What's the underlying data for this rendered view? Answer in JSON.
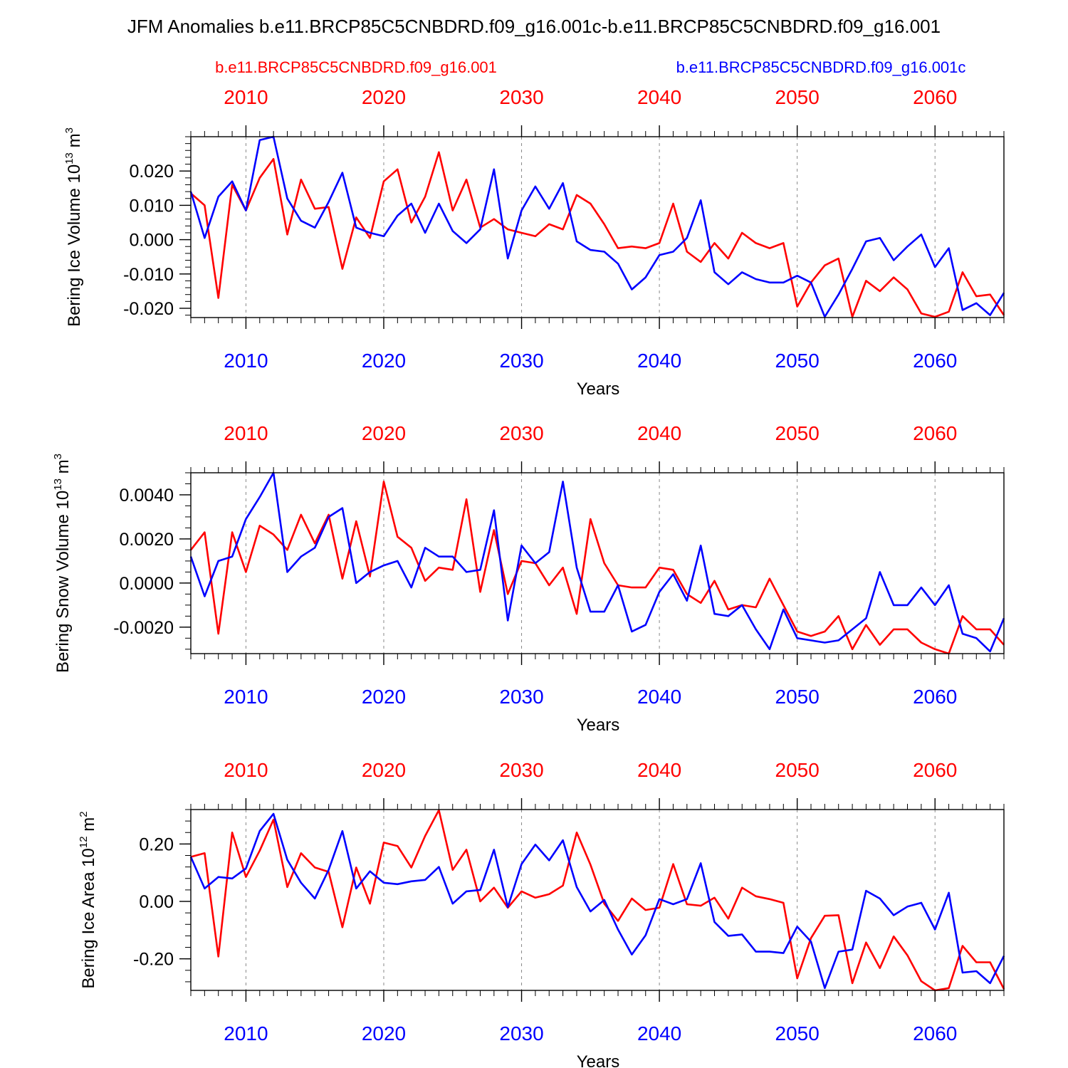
{
  "title": "JFM Anomalies b.e11.BRCP85C5CNBDRD.f09_g16.001c-b.e11.BRCP85C5CNBDRD.f09_g16.001",
  "legend": {
    "red_label": "b.e11.BRCP85C5CNBDRD.f09_g16.001",
    "blue_label": "b.e11.BRCP85C5CNBDRD.f09_g16.001c"
  },
  "colors": {
    "red": "#ff0000",
    "blue": "#0000ff",
    "axis": "#000000",
    "grid": "#888888"
  },
  "chart_data": [
    {
      "type": "line",
      "ylabel": "Bering Ice Volume 10",
      "ylabel_exp": "13",
      "ylabel_unit": " m",
      "ylabel_unit_exp": "3",
      "xlabel": "Years",
      "xlim": [
        2006,
        2065
      ],
      "ylim": [
        -0.0227,
        0.03
      ],
      "yticks": [
        -0.02,
        -0.01,
        0.0,
        0.01,
        0.02
      ],
      "ytick_labels": [
        "-0.020",
        "-0.010",
        "0.000",
        "0.010",
        "0.020"
      ],
      "yminor_step": 0.002,
      "xticks": [
        2010,
        2020,
        2030,
        2040,
        2050,
        2060
      ],
      "xtick_labels": [
        "2010",
        "2020",
        "2030",
        "2040",
        "2050",
        "2060"
      ],
      "x": [
        2006,
        2007,
        2008,
        2009,
        2010,
        2011,
        2012,
        2013,
        2014,
        2015,
        2016,
        2017,
        2018,
        2019,
        2020,
        2021,
        2022,
        2023,
        2024,
        2025,
        2026,
        2027,
        2028,
        2029,
        2030,
        2031,
        2032,
        2033,
        2034,
        2035,
        2036,
        2037,
        2038,
        2039,
        2040,
        2041,
        2042,
        2043,
        2044,
        2045,
        2046,
        2047,
        2048,
        2049,
        2050,
        2051,
        2052,
        2053,
        2054,
        2055,
        2056,
        2057,
        2058,
        2059,
        2060,
        2061,
        2062,
        2063,
        2064,
        2065
      ],
      "series": [
        {
          "name": "b.e11.BRCP85C5CNBDRD.f09_g16.001",
          "color": "red",
          "values": [
            0.0135,
            0.01,
            -0.017,
            0.016,
            0.0085,
            0.018,
            0.0235,
            0.0015,
            0.0175,
            0.009,
            0.0095,
            -0.0085,
            0.0065,
            0.0005,
            0.017,
            0.0205,
            0.005,
            0.0125,
            0.0255,
            0.0085,
            0.0175,
            0.0035,
            0.006,
            0.003,
            0.002,
            0.001,
            0.0045,
            0.003,
            0.013,
            0.0105,
            0.0045,
            -0.0025,
            -0.002,
            -0.0025,
            -0.001,
            0.0105,
            -0.0035,
            -0.0065,
            -0.001,
            -0.0055,
            0.002,
            -0.001,
            -0.0025,
            -0.001,
            -0.0195,
            -0.0125,
            -0.0075,
            -0.0055,
            -0.0225,
            -0.012,
            -0.015,
            -0.011,
            -0.0145,
            -0.0215,
            -0.0225,
            -0.021,
            -0.0095,
            -0.0165,
            -0.016,
            -0.022
          ]
        },
        {
          "name": "b.e11.BRCP85C5CNBDRD.f09_g16.001c",
          "color": "blue",
          "values": [
            0.014,
            0.0005,
            0.0125,
            0.017,
            0.0085,
            0.029,
            0.03,
            0.012,
            0.0055,
            0.0035,
            0.011,
            0.0195,
            0.0035,
            0.002,
            0.001,
            0.007,
            0.0105,
            0.002,
            0.0105,
            0.0025,
            -0.001,
            0.003,
            0.0205,
            -0.0055,
            0.0085,
            0.0155,
            0.009,
            0.0165,
            -0.0005,
            -0.003,
            -0.0035,
            -0.007,
            -0.0145,
            -0.011,
            -0.0045,
            -0.0035,
            0.0005,
            0.0115,
            -0.0095,
            -0.013,
            -0.0095,
            -0.0115,
            -0.0125,
            -0.0125,
            -0.0105,
            -0.0125,
            -0.0225,
            -0.016,
            -0.0085,
            -0.0005,
            0.0005,
            -0.006,
            -0.002,
            0.0015,
            -0.008,
            -0.0025,
            -0.0205,
            -0.0185,
            -0.022,
            -0.0155
          ]
        }
      ]
    },
    {
      "type": "line",
      "ylabel": "Bering Snow Volume 10",
      "ylabel_exp": "13",
      "ylabel_unit": " m",
      "ylabel_unit_exp": "3",
      "xlabel": "Years",
      "xlim": [
        2006,
        2065
      ],
      "ylim": [
        -0.0032,
        0.005
      ],
      "yticks": [
        -0.002,
        0.0,
        0.002,
        0.004
      ],
      "ytick_labels": [
        "-0.0020",
        "0.0000",
        "0.0020",
        "0.0040"
      ],
      "yminor_step": 0.0005,
      "xticks": [
        2010,
        2020,
        2030,
        2040,
        2050,
        2060
      ],
      "xtick_labels": [
        "2010",
        "2020",
        "2030",
        "2040",
        "2050",
        "2060"
      ],
      "x": [
        2006,
        2007,
        2008,
        2009,
        2010,
        2011,
        2012,
        2013,
        2014,
        2015,
        2016,
        2017,
        2018,
        2019,
        2020,
        2021,
        2022,
        2023,
        2024,
        2025,
        2026,
        2027,
        2028,
        2029,
        2030,
        2031,
        2032,
        2033,
        2034,
        2035,
        2036,
        2037,
        2038,
        2039,
        2040,
        2041,
        2042,
        2043,
        2044,
        2045,
        2046,
        2047,
        2048,
        2049,
        2050,
        2051,
        2052,
        2053,
        2054,
        2055,
        2056,
        2057,
        2058,
        2059,
        2060,
        2061,
        2062,
        2063,
        2064,
        2065
      ],
      "series": [
        {
          "name": "b.e11.BRCP85C5CNBDRD.f09_g16.001",
          "color": "red",
          "values": [
            0.0015,
            0.0023,
            -0.0023,
            0.0023,
            0.0005,
            0.0026,
            0.0022,
            0.0015,
            0.0031,
            0.0018,
            0.0031,
            0.0002,
            0.0028,
            0.0003,
            0.0046,
            0.0021,
            0.0016,
            0.0001,
            0.0007,
            0.0006,
            0.0038,
            -0.0004,
            0.0024,
            -0.0005,
            0.001,
            0.0009,
            -0.0001,
            0.0007,
            -0.0014,
            0.0029,
            0.0009,
            -0.0001,
            -0.0002,
            -0.0002,
            0.0007,
            0.0006,
            -0.0005,
            -0.0009,
            0.0001,
            -0.0012,
            -0.001,
            -0.0011,
            0.0002,
            -0.001,
            -0.0022,
            -0.0024,
            -0.0022,
            -0.0015,
            -0.003,
            -0.0019,
            -0.0028,
            -0.0021,
            -0.0021,
            -0.0027,
            -0.003,
            -0.0032,
            -0.0015,
            -0.0021,
            -0.0021,
            -0.0028
          ]
        },
        {
          "name": "b.e11.BRCP85C5CNBDRD.f09_g16.001c",
          "color": "blue",
          "values": [
            0.0012,
            -0.0006,
            0.001,
            0.0012,
            0.0029,
            0.0039,
            0.005,
            0.0005,
            0.0012,
            0.0016,
            0.003,
            0.0034,
            0.0,
            0.0005,
            0.0008,
            0.001,
            -0.0002,
            0.0016,
            0.0012,
            0.0012,
            0.0005,
            0.0006,
            0.0033,
            -0.0017,
            0.0017,
            0.0009,
            0.0014,
            0.0046,
            0.0007,
            -0.0013,
            -0.0013,
            -0.0001,
            -0.0022,
            -0.0019,
            -0.0004,
            0.0004,
            -0.0008,
            0.0017,
            -0.0014,
            -0.0015,
            -0.001,
            -0.0021,
            -0.003,
            -0.0012,
            -0.0025,
            -0.0026,
            -0.0027,
            -0.0026,
            -0.0021,
            -0.0016,
            0.0005,
            -0.001,
            -0.001,
            -0.0002,
            -0.001,
            -0.0001,
            -0.0023,
            -0.0025,
            -0.0031,
            -0.0016
          ]
        }
      ]
    },
    {
      "type": "line",
      "ylabel": "Bering Ice Area 10",
      "ylabel_exp": "12",
      "ylabel_unit": " m",
      "ylabel_unit_exp": "2",
      "xlabel": "Years",
      "xlim": [
        2006,
        2065
      ],
      "ylim": [
        -0.31,
        0.32
      ],
      "yticks": [
        -0.2,
        0.0,
        0.2
      ],
      "ytick_labels": [
        "-0.20",
        "0.00",
        "0.20"
      ],
      "yminor_step": 0.04,
      "xticks": [
        2010,
        2020,
        2030,
        2040,
        2050,
        2060
      ],
      "xtick_labels": [
        "2010",
        "2020",
        "2030",
        "2040",
        "2050",
        "2060"
      ],
      "x": [
        2006,
        2007,
        2008,
        2009,
        2010,
        2011,
        2012,
        2013,
        2014,
        2015,
        2016,
        2017,
        2018,
        2019,
        2020,
        2021,
        2022,
        2023,
        2024,
        2025,
        2026,
        2027,
        2028,
        2029,
        2030,
        2031,
        2032,
        2033,
        2034,
        2035,
        2036,
        2037,
        2038,
        2039,
        2040,
        2041,
        2042,
        2043,
        2044,
        2045,
        2046,
        2047,
        2048,
        2049,
        2050,
        2051,
        2052,
        2053,
        2054,
        2055,
        2056,
        2057,
        2058,
        2059,
        2060,
        2061,
        2062,
        2063,
        2064,
        2065
      ],
      "series": [
        {
          "name": "b.e11.BRCP85C5CNBDRD.f09_g16.001",
          "color": "red",
          "values": [
            0.155,
            0.168,
            -0.192,
            0.24,
            0.085,
            0.177,
            0.285,
            0.05,
            0.168,
            0.118,
            0.103,
            -0.09,
            0.118,
            -0.008,
            0.205,
            0.193,
            0.118,
            0.228,
            0.318,
            0.11,
            0.18,
            0.0,
            0.048,
            -0.022,
            0.035,
            0.013,
            0.025,
            0.055,
            0.24,
            0.128,
            -0.008,
            -0.068,
            0.01,
            -0.03,
            -0.022,
            0.13,
            -0.01,
            -0.015,
            0.013,
            -0.06,
            0.048,
            0.018,
            0.008,
            -0.005,
            -0.268,
            -0.128,
            -0.05,
            -0.048,
            -0.285,
            -0.143,
            -0.232,
            -0.122,
            -0.188,
            -0.278,
            -0.31,
            -0.302,
            -0.155,
            -0.212,
            -0.212,
            -0.305
          ]
        },
        {
          "name": "b.e11.BRCP85C5CNBDRD.f09_g16.001c",
          "color": "blue",
          "values": [
            0.155,
            0.045,
            0.085,
            0.08,
            0.115,
            0.245,
            0.305,
            0.145,
            0.065,
            0.01,
            0.11,
            0.245,
            0.045,
            0.105,
            0.065,
            0.06,
            0.07,
            0.075,
            0.12,
            -0.008,
            0.035,
            0.04,
            0.18,
            -0.02,
            0.13,
            0.198,
            0.143,
            0.213,
            0.05,
            -0.035,
            0.005,
            -0.098,
            -0.185,
            -0.118,
            0.008,
            -0.01,
            0.008,
            0.133,
            -0.072,
            -0.12,
            -0.115,
            -0.175,
            -0.175,
            -0.18,
            -0.088,
            -0.14,
            -0.302,
            -0.175,
            -0.168,
            0.037,
            0.01,
            -0.048,
            -0.018,
            -0.005,
            -0.098,
            0.03,
            -0.248,
            -0.243,
            -0.285,
            -0.19
          ]
        }
      ]
    }
  ]
}
